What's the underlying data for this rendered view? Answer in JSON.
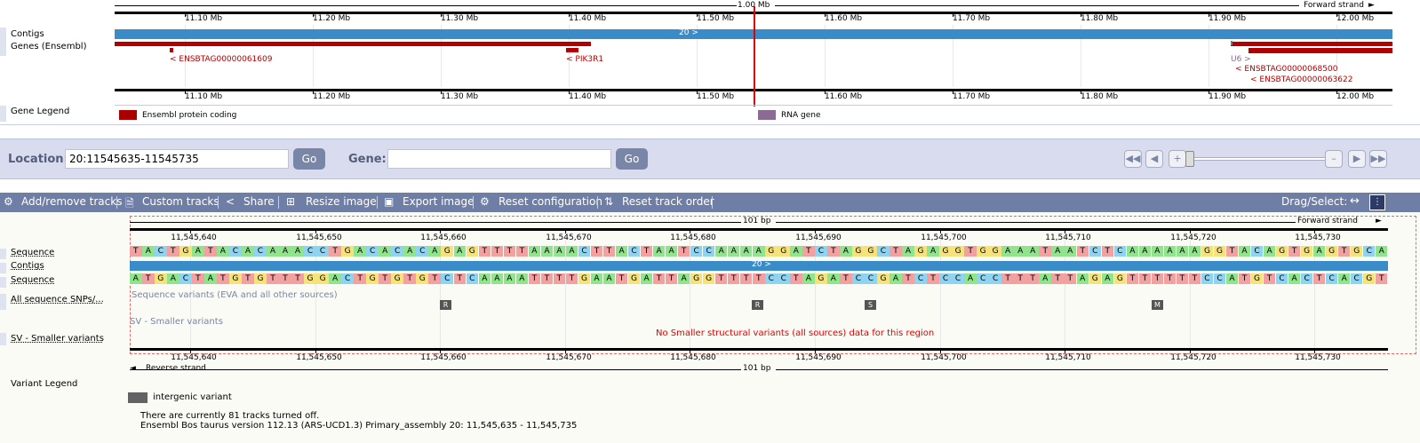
{
  "overview": {
    "ruler_center_label": "1.00 Mb",
    "strand_label": "Forward strand",
    "ticks": [
      "11.10 Mb",
      "11.20 Mb",
      "11.30 Mb",
      "11.40 Mb",
      "11.50 Mb",
      "11.60 Mb",
      "11.70 Mb",
      "11.80 Mb",
      "11.90 Mb",
      "12.00 Mb"
    ],
    "track_labels": {
      "contigs": "Contigs",
      "genes": "Genes (Ensembl)",
      "gene_legend": "Gene Legend"
    },
    "contig_label": "20 >",
    "genes": [
      {
        "name": "< ENSBTAG00000061609"
      },
      {
        "name": "< PIK3R1"
      },
      {
        "name": "U6 >"
      },
      {
        "name": "< ENSBTAG00000068500"
      },
      {
        "name": "< ENSBTAG00000063622"
      }
    ],
    "legend": [
      {
        "label": "Ensembl protein coding",
        "color": "#a80000"
      },
      {
        "label": "RNA gene",
        "color": "#8b6a94"
      }
    ]
  },
  "location": {
    "location_label": "Location:",
    "location_value": "20:11545635-11545735",
    "go_label": "Go",
    "gene_label": "Gene:",
    "gene_value": "",
    "gene_go_label": "Go"
  },
  "toolbar": {
    "add_remove": "Add/remove tracks",
    "custom": "Custom tracks",
    "share": "Share",
    "resize": "Resize image",
    "export": "Export image",
    "reset_config": "Reset configuration",
    "reset_order": "Reset track order",
    "drag_select": "Drag/Select:"
  },
  "detail": {
    "bp_label": "101 bp",
    "forward_strand": "Forward strand",
    "reverse_strand": "Reverse strand",
    "ticks": [
      "11,545,640",
      "11,545,650",
      "11,545,660",
      "11,545,670",
      "11,545,680",
      "11,545,690",
      "11,545,700",
      "11,545,710",
      "11,545,720",
      "11,545,730"
    ],
    "track_labels": {
      "sequence_top": "Sequence",
      "contigs": "Contigs",
      "sequence_bottom": "Sequence",
      "snps": "All sequence SNPs/...",
      "sv": "SV - Smaller variants",
      "variant_legend": "Variant Legend"
    },
    "forward_seq": "TACTGATACACAAACCTGACACACAGAGTTTTAAAACTTACTAATCCAAAAGGATCTAGGCTAGAGGTGGAAATAATCTCAAAAAAGGTACAGTGAGTGCA",
    "reverse_seq": "ATGACTATGTGTTTGGACTGTGTGTCTCAAAATTTTGAATGATTAGGTTTTCCTAGATCCGATCTCCACCTTTATTAGAGTTTTTTCCATGTCACTCACGT",
    "contig_label": "20 >",
    "snp_track_title": "Sequence variants (EVA and all other sources)",
    "sv_track_title": "SV - Smaller variants",
    "sv_message": "No Smaller structural variants (all sources) data for this region",
    "variants": [
      {
        "code": "R"
      },
      {
        "code": "R"
      },
      {
        "code": "S"
      },
      {
        "code": "M"
      }
    ],
    "variant_legend_label": "intergenic variant",
    "tracks_off": "There are currently 81 tracks turned off.",
    "version": "Ensembl Bos taurus version 112.13 (ARS-UCD1.3) Primary_assembly 20: 11,545,635 - 11,545,735"
  },
  "colors": {
    "contig_blue": "#3a8cc8",
    "gene_red": "#b30000",
    "base_A": "#8fe48c",
    "base_C": "#8ed4f0",
    "base_G": "#f5e27a",
    "base_T": "#f2a0a0"
  }
}
